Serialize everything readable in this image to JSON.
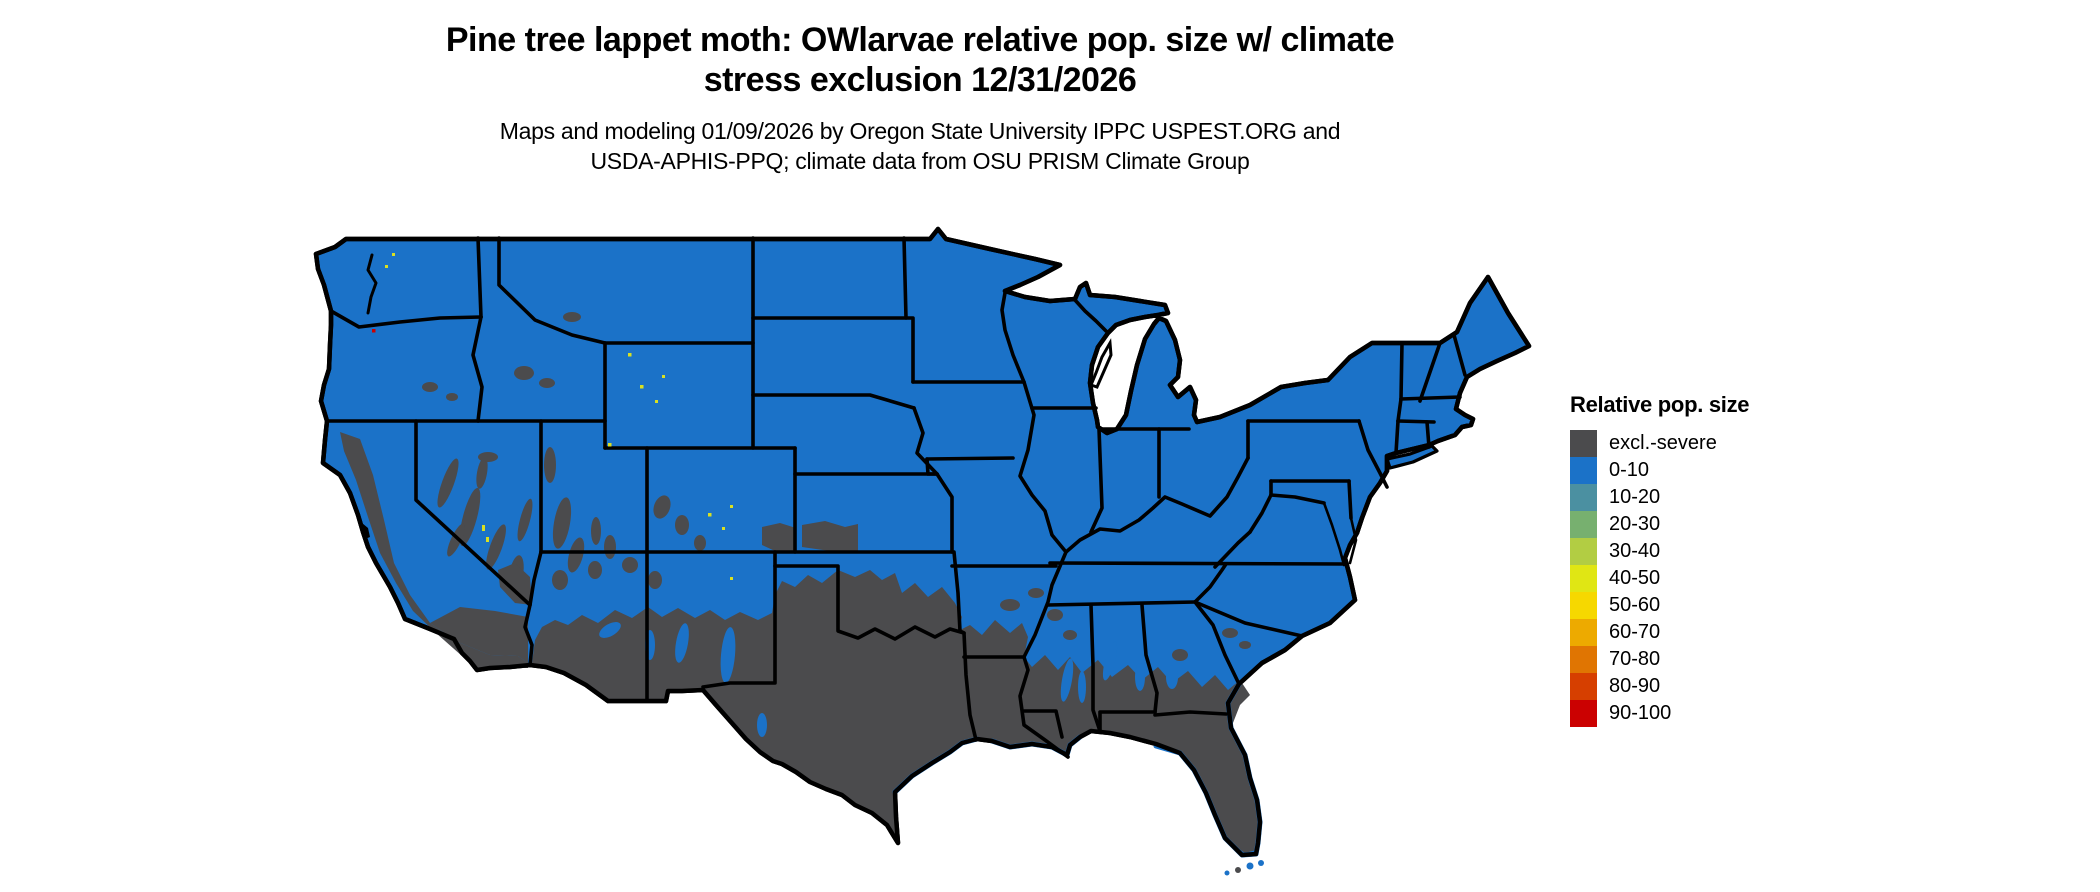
{
  "title": {
    "line1": "Pine tree lappet moth: OWlarvae relative pop. size w/ climate",
    "line2": "stress exclusion 12/31/2026"
  },
  "subtitle": {
    "line1": "Maps and modeling 01/09/2026 by Oregon State University IPPC USPEST.ORG and",
    "line2": "USDA-APHIS-PPQ; climate data from OSU PRISM Climate Group"
  },
  "legend": {
    "title": "Relative pop. size",
    "items": [
      {
        "label": "excl.-severe",
        "color": "#4b4b4d"
      },
      {
        "label": "0-10",
        "color": "#1b72c8"
      },
      {
        "label": "10-20",
        "color": "#4b90a1"
      },
      {
        "label": "20-30",
        "color": "#77b06f"
      },
      {
        "label": "30-40",
        "color": "#b2cd43"
      },
      {
        "label": "40-50",
        "color": "#e0e614"
      },
      {
        "label": "50-60",
        "color": "#f6d800"
      },
      {
        "label": "60-70",
        "color": "#edaa00"
      },
      {
        "label": "70-80",
        "color": "#e07502"
      },
      {
        "label": "80-90",
        "color": "#d63f00"
      },
      {
        "label": "90-100",
        "color": "#cb0101"
      }
    ]
  },
  "map": {
    "land_color": "#1b72c8",
    "exclusion_color": "#4b4b4d",
    "border_color": "#000000",
    "water_color": "#ffffff",
    "speckle_yellow": "#d9e021",
    "speckle_red": "#cb0101"
  }
}
